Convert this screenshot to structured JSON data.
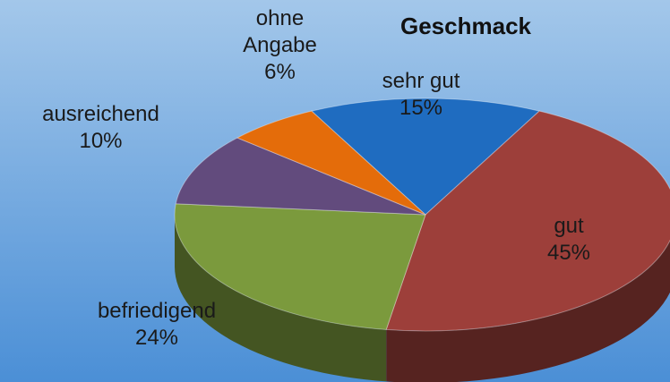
{
  "chart_data": {
    "type": "pie",
    "title": "Geschmack",
    "categories": [
      "sehr gut",
      "gut",
      "befriedigend",
      "ausreichend",
      "ohne Angabe"
    ],
    "values": [
      15,
      45,
      24,
      10,
      6
    ],
    "value_labels": [
      "15%",
      "45%",
      "24%",
      "10%",
      "6%"
    ],
    "colors": [
      "#1f6cc0",
      "#9d3f3a",
      "#7b9a3d",
      "#624b7d",
      "#e46c0a"
    ]
  }
}
